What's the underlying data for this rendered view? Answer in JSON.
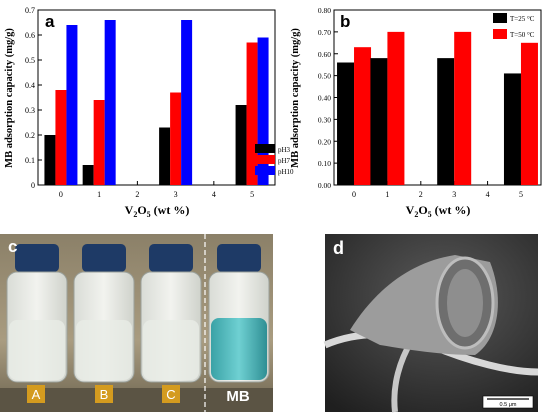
{
  "colors": {
    "black": "#000000",
    "red": "#ff0000",
    "blue": "#0000ff",
    "photo_bg_top": "#9a8e73",
    "photo_bg_bottom": "#b7aa8e",
    "cap": "#1e3a66",
    "mb_liquid": "#48b3b6",
    "label_gold": "#d49b1f",
    "sem_bg": "#2d2d2d",
    "sem_fiber": "#cfcfcf"
  },
  "panels": {
    "a": {
      "letter": "a"
    },
    "b": {
      "letter": "b"
    },
    "c": {
      "letter": "c",
      "vial_labels": [
        "A",
        "B",
        "C",
        "MB"
      ]
    },
    "d": {
      "letter": "d",
      "scale_label": "0.5 μm"
    }
  },
  "chart_data": [
    {
      "id": "a",
      "type": "bar",
      "ylabel": "MB adsorption capacity (mg/g)",
      "xlabel_main": "V",
      "xlabel_sub1": "2",
      "xlabel_mid": "O",
      "xlabel_sub2": "5",
      "xlabel_tail": " (wt %)",
      "x_ticks": [
        "0",
        "1",
        "2",
        "3",
        "4",
        "5"
      ],
      "ylim": [
        0,
        0.7
      ],
      "y_ticks": [
        "0",
        "0.1",
        "0.2",
        "0.3",
        "0.4",
        "0.5",
        "0.6",
        "0.7"
      ],
      "legend_position": "bottom-right",
      "categories": [
        0,
        1,
        3,
        5
      ],
      "series": [
        {
          "name": "pH3",
          "color": "#000000",
          "values": [
            0.2,
            0.08,
            0.23,
            0.32
          ]
        },
        {
          "name": "pH7",
          "color": "#ff0000",
          "values": [
            0.38,
            0.34,
            0.37,
            0.57
          ]
        },
        {
          "name": "pH10",
          "color": "#0000ff",
          "values": [
            0.64,
            0.66,
            0.66,
            0.59
          ]
        }
      ]
    },
    {
      "id": "b",
      "type": "bar",
      "ylabel": "MB adsorption capacity (mg/g)",
      "xlabel_main": "V",
      "xlabel_sub1": "2",
      "xlabel_mid": "O",
      "xlabel_sub2": "5",
      "xlabel_tail": " (wt %)",
      "x_ticks": [
        "0",
        "1",
        "2",
        "3",
        "4",
        "5"
      ],
      "ylim": [
        0,
        0.8
      ],
      "y_ticks": [
        "0.00",
        "0.10",
        "0.20",
        "0.30",
        "0.40",
        "0.50",
        "0.60",
        "0.70",
        "0.80"
      ],
      "legend_position": "top-right",
      "categories": [
        0,
        1,
        3,
        5
      ],
      "series": [
        {
          "name": "T=25 °C",
          "color": "#000000",
          "values": [
            0.56,
            0.58,
            0.58,
            0.51
          ]
        },
        {
          "name": "T=50 °C",
          "color": "#ff0000",
          "values": [
            0.63,
            0.7,
            0.7,
            0.65
          ]
        }
      ]
    }
  ]
}
